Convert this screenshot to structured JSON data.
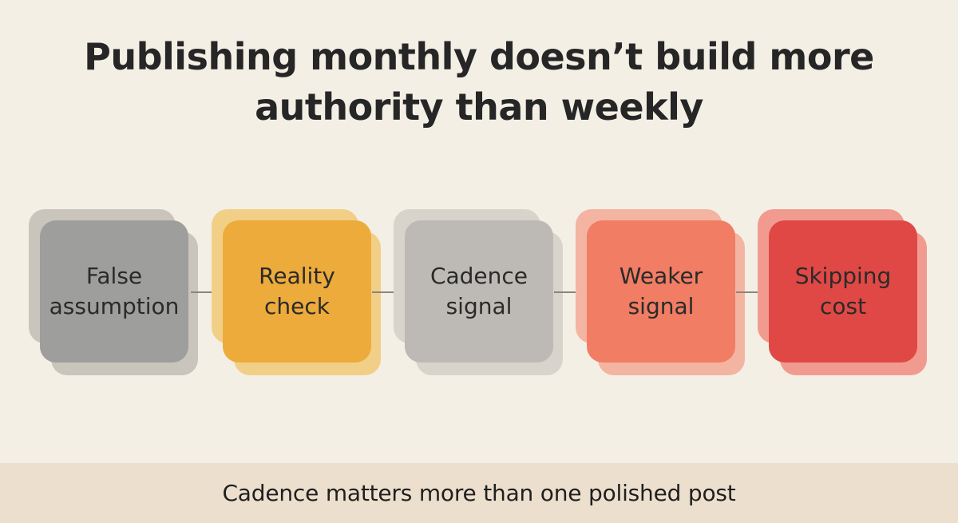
{
  "title": {
    "line1": "Publishing monthly doesn’t build  more",
    "line2": "authority than weekly"
  },
  "steps": [
    {
      "label": "False\nassumption",
      "color": "#9e9e9c",
      "shadow": "#c9c5bd"
    },
    {
      "label": "Reality\ncheck",
      "color": "#edab3b",
      "shadow": "#f1cf86"
    },
    {
      "label": "Cadence\nsignal",
      "color": "#bdbab6",
      "shadow": "#d8d3cb"
    },
    {
      "label": "Weaker\nsignal",
      "color": "#f07d64",
      "shadow": "#f4b4a2"
    },
    {
      "label": "Skipping\ncost",
      "color": "#e04845",
      "shadow": "#f19b90"
    }
  ],
  "footer": {
    "text": "Cadence matters more than one polished post"
  }
}
